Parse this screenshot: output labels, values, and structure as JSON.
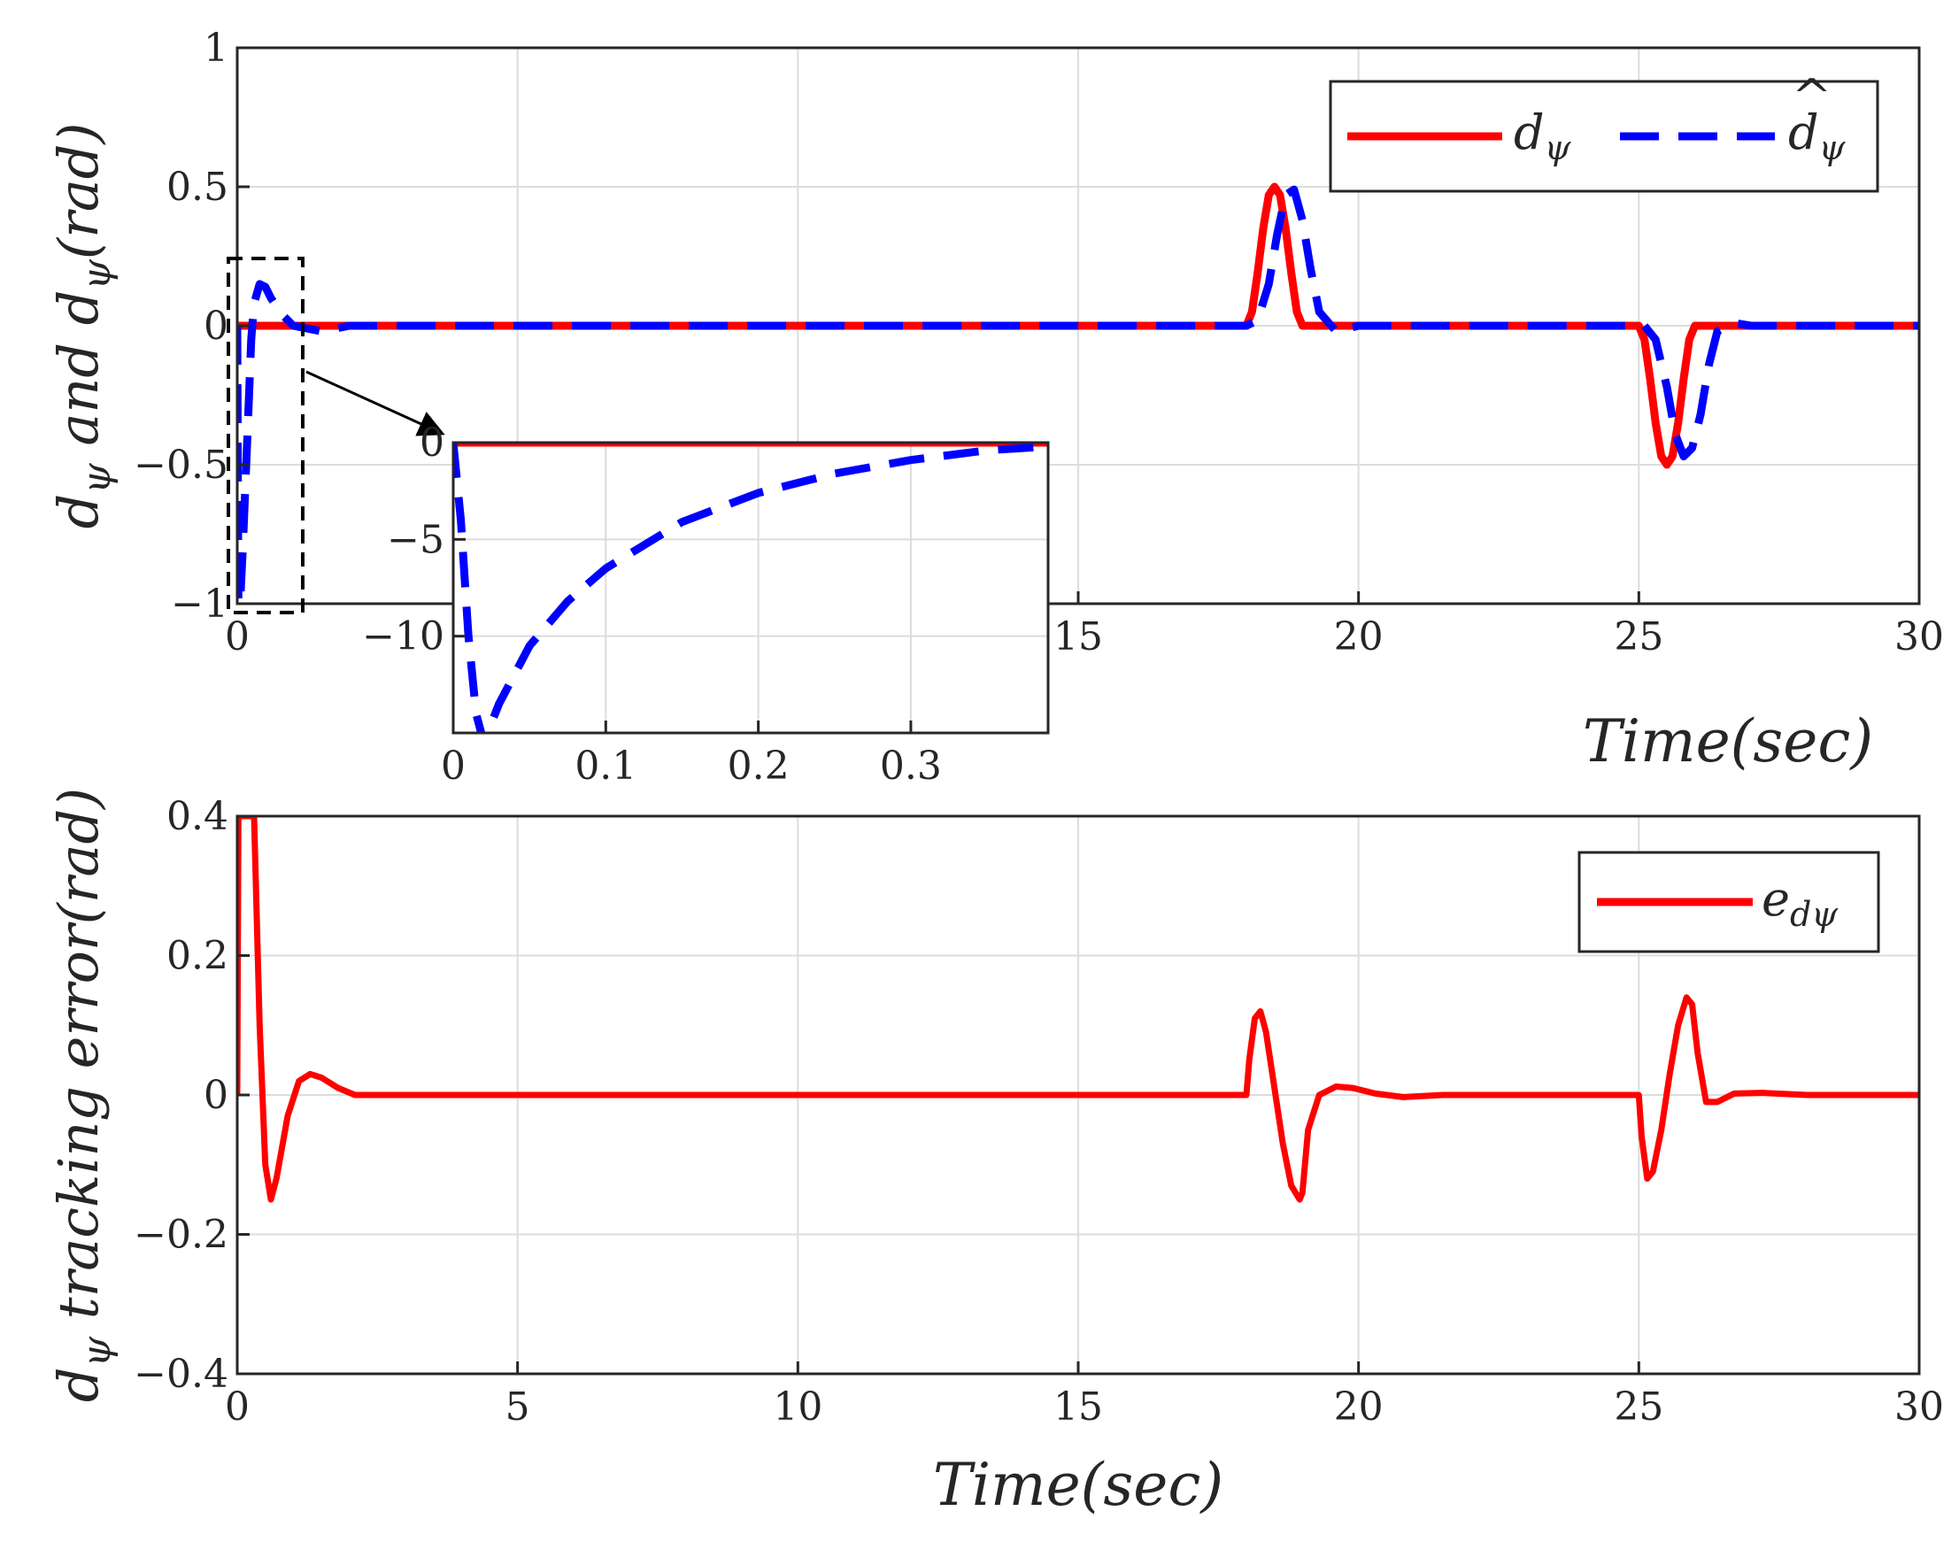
{
  "chart_data": [
    {
      "type": "line",
      "title": "",
      "xlabel": "Time(sec)",
      "ylabel": {
        "pre": "d",
        "sub": "ψ",
        "mid": " and ",
        "hat": "d",
        "hatmark": "^",
        "hatsub": "ψ",
        "post": "(rad)"
      },
      "xlim": [
        0,
        30
      ],
      "ylim": [
        -1,
        1
      ],
      "xticks": [
        "0",
        "5",
        "10",
        "15",
        "20",
        "25",
        "30"
      ],
      "yticks": [
        "-1",
        "-0.5",
        "0",
        "0.5",
        "1"
      ],
      "grid": true,
      "legend_position": "top-right",
      "series": [
        {
          "name": "d_ψ",
          "legend": {
            "base": "d",
            "sub": "ψ"
          },
          "color": "#ff0000",
          "style": "solid",
          "x": [
            0,
            18,
            18.1,
            18.2,
            18.3,
            18.4,
            18.5,
            18.6,
            18.7,
            18.8,
            18.9,
            19.0,
            25,
            25.1,
            25.2,
            25.3,
            25.4,
            25.5,
            25.6,
            25.7,
            25.8,
            25.9,
            26.0,
            30
          ],
          "y": [
            0,
            0,
            0.05,
            0.19,
            0.35,
            0.47,
            0.5,
            0.47,
            0.35,
            0.19,
            0.05,
            0,
            0,
            -0.05,
            -0.19,
            -0.35,
            -0.47,
            -0.5,
            -0.47,
            -0.35,
            -0.19,
            -0.05,
            0,
            0
          ]
        },
        {
          "name": "d̂_ψ",
          "legend": {
            "base": "d",
            "hatmark": "^",
            "sub": "ψ"
          },
          "color": "#0000ff",
          "style": "dashed",
          "x": [
            0,
            0.02,
            0.05,
            0.1,
            0.15,
            0.2,
            0.25,
            0.3,
            0.4,
            0.5,
            0.6,
            0.8,
            1.0,
            1.5,
            2.0,
            18,
            18.2,
            18.4,
            18.55,
            18.7,
            18.85,
            19.0,
            19.15,
            19.3,
            19.6,
            20.0,
            25.1,
            25.3,
            25.5,
            25.65,
            25.8,
            25.95,
            26.1,
            26.25,
            26.4,
            26.7,
            27.0,
            30
          ],
          "y": [
            0,
            -1,
            -1,
            -0.8,
            -0.55,
            -0.3,
            -0.05,
            0.08,
            0.15,
            0.14,
            0.1,
            0.04,
            0,
            -0.02,
            0,
            0,
            0.02,
            0.15,
            0.33,
            0.47,
            0.49,
            0.38,
            0.2,
            0.05,
            -0.02,
            0,
            0,
            -0.05,
            -0.22,
            -0.39,
            -0.47,
            -0.44,
            -0.32,
            -0.14,
            -0.02,
            0.01,
            0,
            0
          ]
        }
      ]
    },
    {
      "type": "line",
      "title": "",
      "xlabel": "Time(sec)",
      "xlim": [
        0,
        0.39
      ],
      "ylim": [
        -15,
        0
      ],
      "xticks": [
        "0",
        "0.1",
        "0.2",
        "0.3"
      ],
      "yticks": [
        "-10",
        "-5",
        "0"
      ],
      "grid": true,
      "role": "inset zoom of first chart",
      "series": [
        {
          "name": "d_ψ",
          "color": "#ff0000",
          "style": "solid",
          "x": [
            0,
            0.39
          ],
          "y": [
            0,
            0
          ]
        },
        {
          "name": "d̂_ψ",
          "color": "#0000ff",
          "style": "dashed",
          "x": [
            0,
            0.005,
            0.01,
            0.015,
            0.02,
            0.03,
            0.05,
            0.075,
            0.1,
            0.15,
            0.2,
            0.25,
            0.3,
            0.35,
            0.39
          ],
          "y": [
            0,
            -4,
            -10,
            -14,
            -15.5,
            -13.5,
            -10.5,
            -8.2,
            -6.5,
            -4.1,
            -2.6,
            -1.6,
            -0.9,
            -0.4,
            -0.2
          ]
        }
      ]
    },
    {
      "type": "line",
      "title": "",
      "xlabel": "Time(sec)",
      "ylabel": {
        "pre": "d",
        "sub": "ψ",
        "post": " tracking error(rad)"
      },
      "xlim": [
        0,
        30
      ],
      "ylim": [
        -0.4,
        0.4
      ],
      "xticks": [
        "0",
        "5",
        "10",
        "15",
        "20",
        "25",
        "30"
      ],
      "yticks": [
        "-0.4",
        "-0.2",
        "0",
        "0.2",
        "0.4"
      ],
      "grid": true,
      "legend_position": "top-right",
      "series": [
        {
          "name": "e_dψ",
          "legend": {
            "base": "e",
            "sub": "dψ"
          },
          "color": "#ff0000",
          "style": "solid",
          "x": [
            0,
            0.02,
            0.05,
            0.25,
            0.3,
            0.4,
            0.5,
            0.6,
            0.7,
            0.9,
            1.1,
            1.3,
            1.5,
            1.8,
            2.1,
            2.5,
            18,
            18.05,
            18.15,
            18.25,
            18.35,
            18.5,
            18.65,
            18.8,
            18.95,
            19.0,
            19.1,
            19.3,
            19.6,
            19.9,
            20.3,
            20.8,
            21.5,
            25,
            25.05,
            25.15,
            25.25,
            25.4,
            25.55,
            25.7,
            25.85,
            25.95,
            26.05,
            26.2,
            26.4,
            26.7,
            27.2,
            28,
            30
          ],
          "y": [
            0,
            0.4,
            0.4,
            0.4,
            0.4,
            0.1,
            -0.1,
            -0.15,
            -0.12,
            -0.03,
            0.02,
            0.03,
            0.025,
            0.01,
            0,
            0,
            0,
            0.05,
            0.11,
            0.12,
            0.09,
            0.01,
            -0.07,
            -0.13,
            -0.15,
            -0.14,
            -0.05,
            0.0,
            0.012,
            0.01,
            0.002,
            -0.003,
            0,
            0,
            -0.06,
            -0.12,
            -0.11,
            -0.05,
            0.03,
            0.1,
            0.14,
            0.13,
            0.06,
            -0.01,
            -0.01,
            0.002,
            0.003,
            0,
            0
          ]
        }
      ]
    }
  ]
}
